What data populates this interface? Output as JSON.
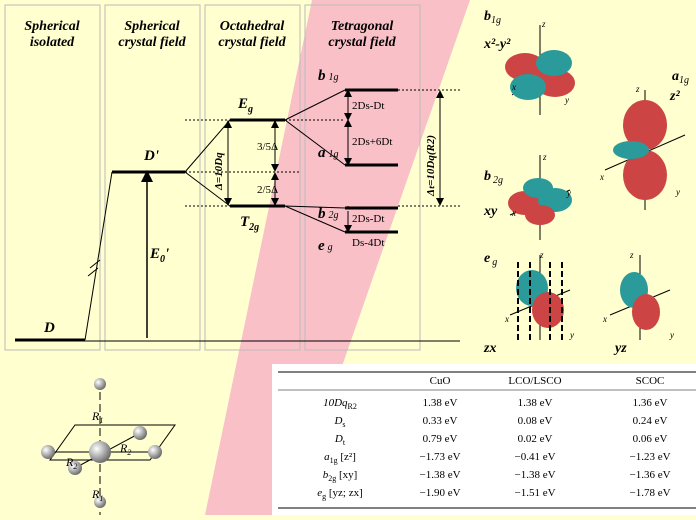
{
  "columns": [
    [
      "Spherical",
      "isolated"
    ],
    [
      "Spherical",
      "crystal field"
    ],
    [
      "Octahedral",
      "crystal field"
    ],
    [
      "Tetragonal",
      "crystal field"
    ]
  ],
  "levels": {
    "D": "D",
    "D_prime": "D'",
    "E0": {
      "text": "E",
      "sub": "0",
      "suffix": "'"
    },
    "Eg": {
      "text": "E",
      "sub": "g"
    },
    "T2g": {
      "text": "T",
      "sub": "2g"
    },
    "b1g": {
      "text": "b",
      "sub": "1g"
    },
    "a1g": {
      "text": "a",
      "sub": "1g"
    },
    "b2g": {
      "text": "b",
      "sub": "2g"
    },
    "eg": {
      "text": "e",
      "sub": "g"
    }
  },
  "splittings": {
    "three_fifths": "3/5Δ",
    "two_fifths": "2/5Δ",
    "delta": "Δ=10Dq",
    "b1g_a1g": "2Ds-Dt",
    "a1g_Eg": "2Ds+6Dt",
    "b2g_T2g": "2Ds-Dt",
    "eg_T2g": "Ds-4Dt",
    "delta_t": "Δₜ=10Dq(R2)"
  },
  "orbitals": [
    {
      "label": {
        "text": "b",
        "sub": "1g"
      },
      "name": "x²-y²"
    },
    {
      "label": {
        "text": "a",
        "sub": "1g"
      },
      "name": "z²"
    },
    {
      "label": {
        "text": "b",
        "sub": "2g"
      },
      "name": "xy"
    },
    {
      "label": {
        "text": "e",
        "sub": "g"
      },
      "name": "zx"
    },
    {
      "name": "yz"
    }
  ],
  "axes": {
    "x": "x",
    "y": "y",
    "z": "z"
  },
  "structure": {
    "r1": {
      "text": "R",
      "sub": "1"
    },
    "r2": {
      "text": "R",
      "sub": "2"
    }
  },
  "table": {
    "columns": [
      "CuO",
      "LCO/LSCO",
      "SCOC"
    ],
    "rows": [
      {
        "label": {
          "text": "10Dq",
          "sub": "R2",
          "suffix": ""
        },
        "values": [
          "1.38 eV",
          "1.38 eV",
          "1.36 eV"
        ]
      },
      {
        "label": {
          "text": "D",
          "sub": "s",
          "suffix": ""
        },
        "values": [
          "0.33 eV",
          "0.08 eV",
          "0.24 eV"
        ]
      },
      {
        "label": {
          "text": "D",
          "sub": "t",
          "suffix": ""
        },
        "values": [
          "0.79 eV",
          "0.02 eV",
          "0.06 eV"
        ]
      },
      {
        "label": {
          "text": "a",
          "sub": "1g",
          "suffix": " [z²]"
        },
        "values": [
          "−1.73 eV",
          "−0.41 eV",
          "−1.23 eV"
        ]
      },
      {
        "label": {
          "text": "b",
          "sub": "2g",
          "suffix": " [xy]"
        },
        "values": [
          "−1.38 eV",
          "−1.38 eV",
          "−1.36 eV"
        ]
      },
      {
        "label": {
          "text": "e",
          "sub": "g",
          "suffix": " [yz; zx]"
        },
        "values": [
          "−1.90 eV",
          "−1.51 eV",
          "−1.78 eV"
        ]
      }
    ]
  }
}
